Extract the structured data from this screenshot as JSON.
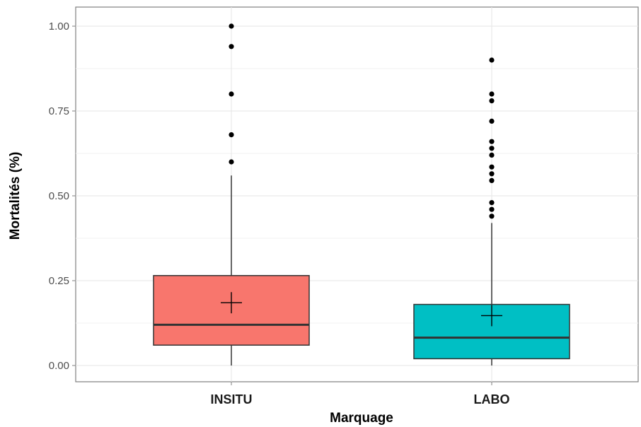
{
  "chart_data": {
    "type": "boxplot",
    "title": "",
    "xlabel": "Marquage",
    "ylabel": "Mortalités (%)",
    "ylim": [
      -0.05,
      1.04
    ],
    "yticks": [
      0.0,
      0.25,
      0.5,
      0.75,
      1.0
    ],
    "ytick_labels": [
      "0.00",
      "0.25",
      "0.50",
      "0.75",
      "1.00"
    ],
    "grid": true,
    "legend": "none",
    "categories": [
      "INSITU",
      "LABO"
    ],
    "boxes": [
      {
        "category": "INSITU",
        "color": "#f8766d",
        "whisker_low": 0.0,
        "q1": 0.06,
        "median": 0.12,
        "q3": 0.265,
        "whisker_high": 0.56,
        "mean": 0.185,
        "outliers": [
          0.6,
          0.68,
          0.8,
          0.94,
          1.0
        ]
      },
      {
        "category": "LABO",
        "color": "#00bfc4",
        "whisker_low": 0.0,
        "q1": 0.02,
        "median": 0.082,
        "q3": 0.18,
        "whisker_high": 0.42,
        "mean": 0.147,
        "outliers": [
          0.44,
          0.46,
          0.48,
          0.545,
          0.565,
          0.585,
          0.62,
          0.64,
          0.66,
          0.72,
          0.78,
          0.8,
          0.9
        ]
      }
    ]
  }
}
